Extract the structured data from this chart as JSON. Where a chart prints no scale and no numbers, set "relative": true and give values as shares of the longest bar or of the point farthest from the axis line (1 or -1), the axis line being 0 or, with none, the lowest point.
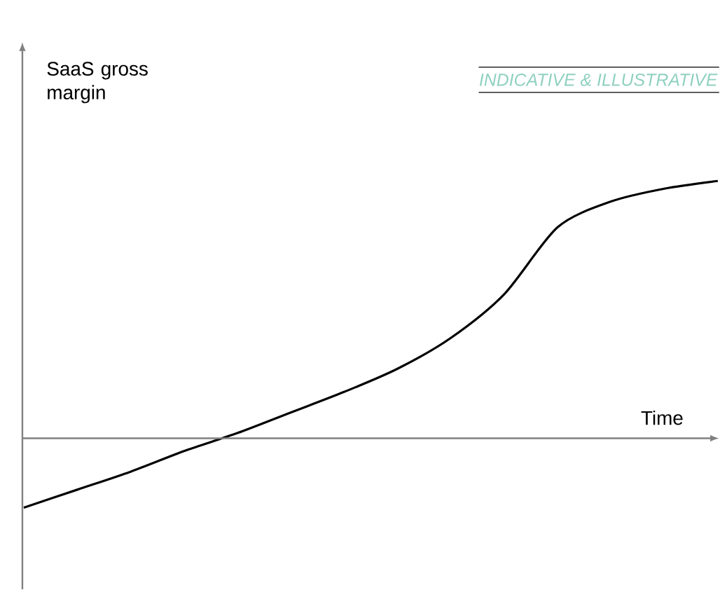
{
  "chart_data": {
    "type": "line",
    "relative": true,
    "xlabel": "Time",
    "ylabel": "SaaS gross margin",
    "annotations": [
      "INDICATIVE & ILLUSTRATIVE"
    ],
    "categories": [
      null,
      null,
      null,
      null,
      null,
      null,
      null,
      null,
      null,
      null,
      null,
      null,
      null,
      null
    ],
    "series": [
      {
        "color": "#000000",
        "values": [
          -0.27,
          -0.2,
          -0.13,
          -0.05,
          0.02,
          0.1,
          0.18,
          0.27,
          0.39,
          0.56,
          0.82,
          0.92,
          0.97,
          1
        ]
      }
    ]
  }
}
